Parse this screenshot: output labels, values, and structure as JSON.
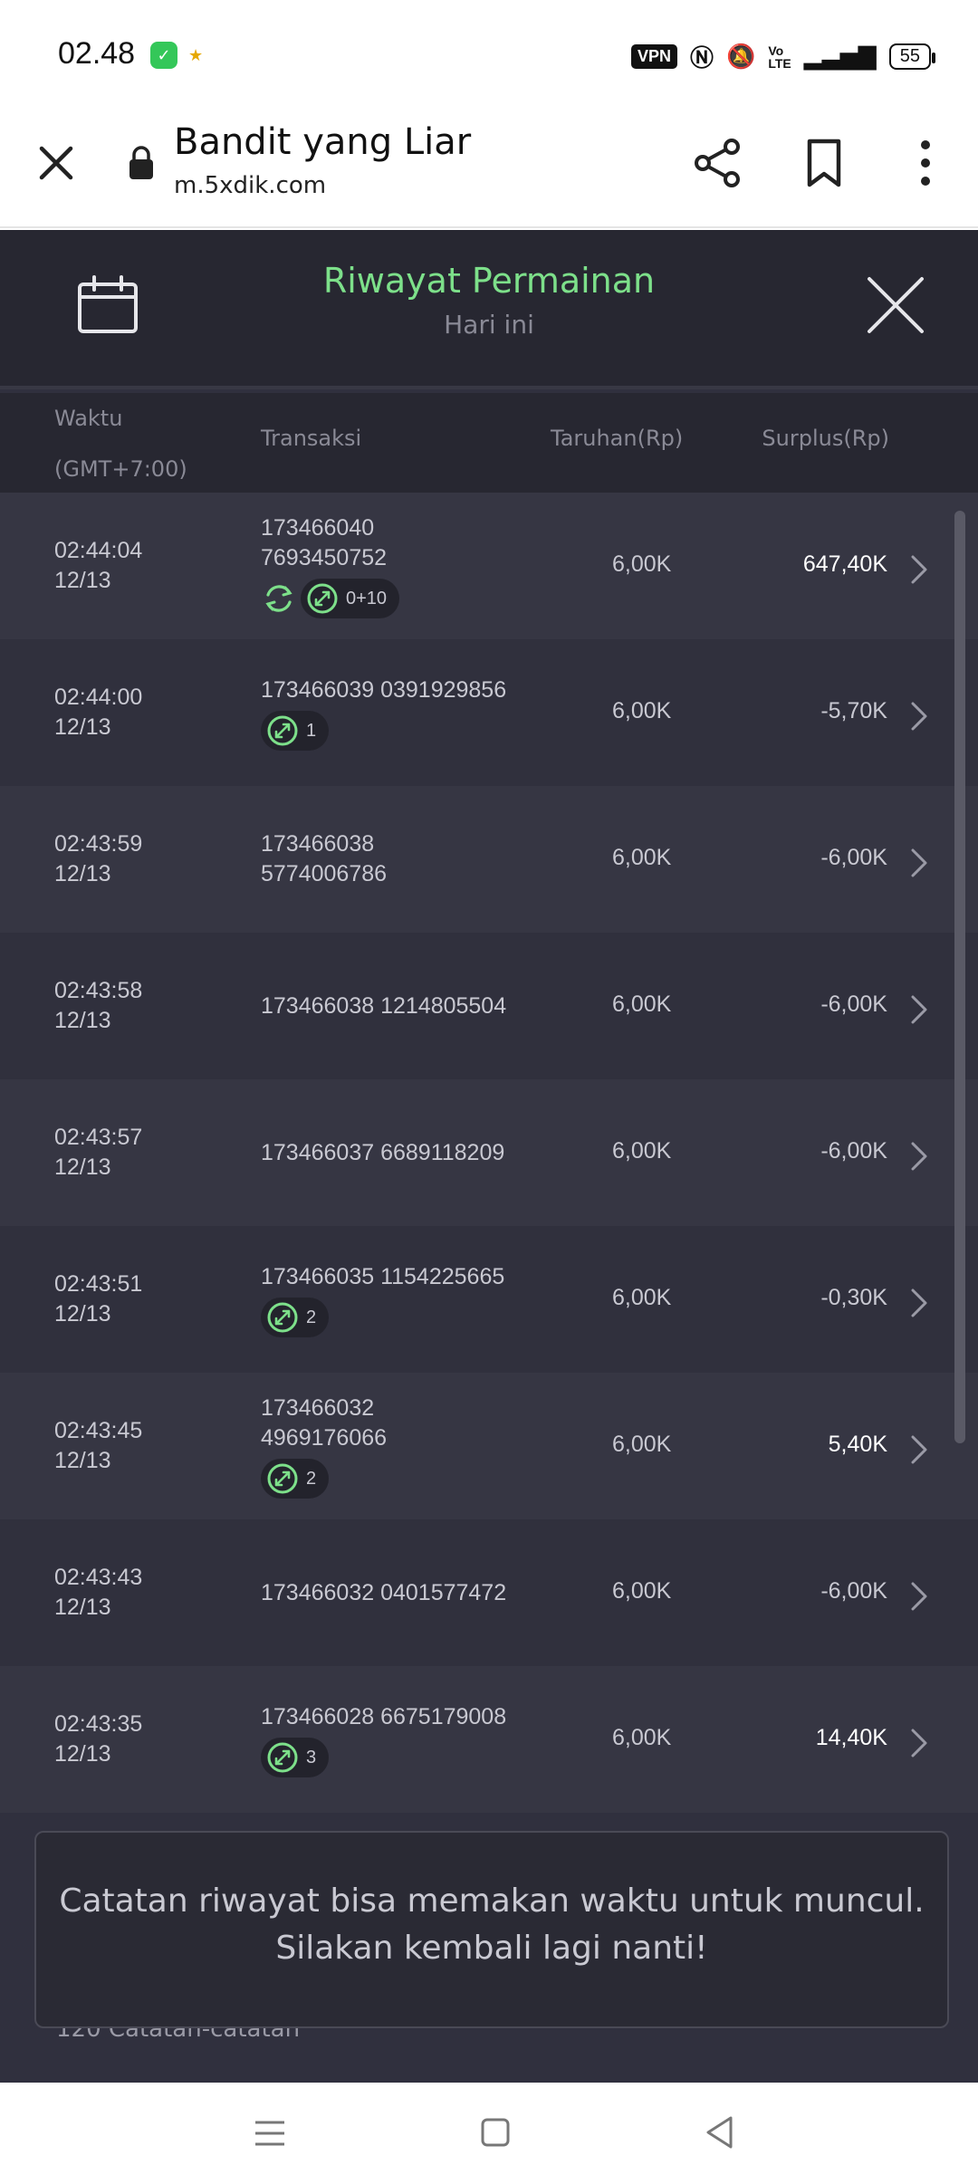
{
  "status_bar": {
    "time": "02.48",
    "vpn": "VPN",
    "battery": "55"
  },
  "browser": {
    "title": "Bandit yang Liar",
    "url": "m.5xdik.com"
  },
  "panel": {
    "title": "Riwayat Permainan",
    "subtitle": "Hari ini"
  },
  "columns": {
    "waktu": "Waktu",
    "timezone": "(GMT+7:00)",
    "transaksi": "Transaksi",
    "taruhan": "Taruhan(Rp)",
    "surplus": "Surplus(Rp)"
  },
  "rows": [
    {
      "time": "02:44:04",
      "date": "12/13",
      "tx1": "173466040",
      "tx2": "7693450752",
      "spin": true,
      "badge": "0+10",
      "bet": "6,00K",
      "surplus": "647,40K",
      "positive": true
    },
    {
      "time": "02:44:00",
      "date": "12/13",
      "tx1": "173466039 0391929856",
      "tx2": "",
      "spin": false,
      "badge": "1",
      "bet": "6,00K",
      "surplus": "-5,70K",
      "positive": false
    },
    {
      "time": "02:43:59",
      "date": "12/13",
      "tx1": "173466038",
      "tx2": "5774006786",
      "spin": false,
      "badge": "",
      "bet": "6,00K",
      "surplus": "-6,00K",
      "positive": false
    },
    {
      "time": "02:43:58",
      "date": "12/13",
      "tx1": "173466038 1214805504",
      "tx2": "",
      "spin": false,
      "badge": "",
      "bet": "6,00K",
      "surplus": "-6,00K",
      "positive": false
    },
    {
      "time": "02:43:57",
      "date": "12/13",
      "tx1": "173466037 6689118209",
      "tx2": "",
      "spin": false,
      "badge": "",
      "bet": "6,00K",
      "surplus": "-6,00K",
      "positive": false
    },
    {
      "time": "02:43:51",
      "date": "12/13",
      "tx1": "173466035 1154225665",
      "tx2": "",
      "spin": false,
      "badge": "2",
      "bet": "6,00K",
      "surplus": "-0,30K",
      "positive": false
    },
    {
      "time": "02:43:45",
      "date": "12/13",
      "tx1": "173466032",
      "tx2": "4969176066",
      "spin": false,
      "badge": "2",
      "bet": "6,00K",
      "surplus": "5,40K",
      "positive": true
    },
    {
      "time": "02:43:43",
      "date": "12/13",
      "tx1": "173466032 0401577472",
      "tx2": "",
      "spin": false,
      "badge": "",
      "bet": "6,00K",
      "surplus": "-6,00K",
      "positive": false
    },
    {
      "time": "02:43:35",
      "date": "12/13",
      "tx1": "173466028 6675179008",
      "tx2": "",
      "spin": false,
      "badge": "3",
      "bet": "6,00K",
      "surplus": "14,40K",
      "positive": true
    }
  ],
  "toast": "Catatan riwayat bisa memakan waktu untuk muncul. Silakan kembali lagi nanti!",
  "record_count": "120 Catatan-catatan",
  "colors": {
    "accent_green": "#7de08a",
    "panel_bg": "#30303e",
    "header_bg": "#272731"
  }
}
